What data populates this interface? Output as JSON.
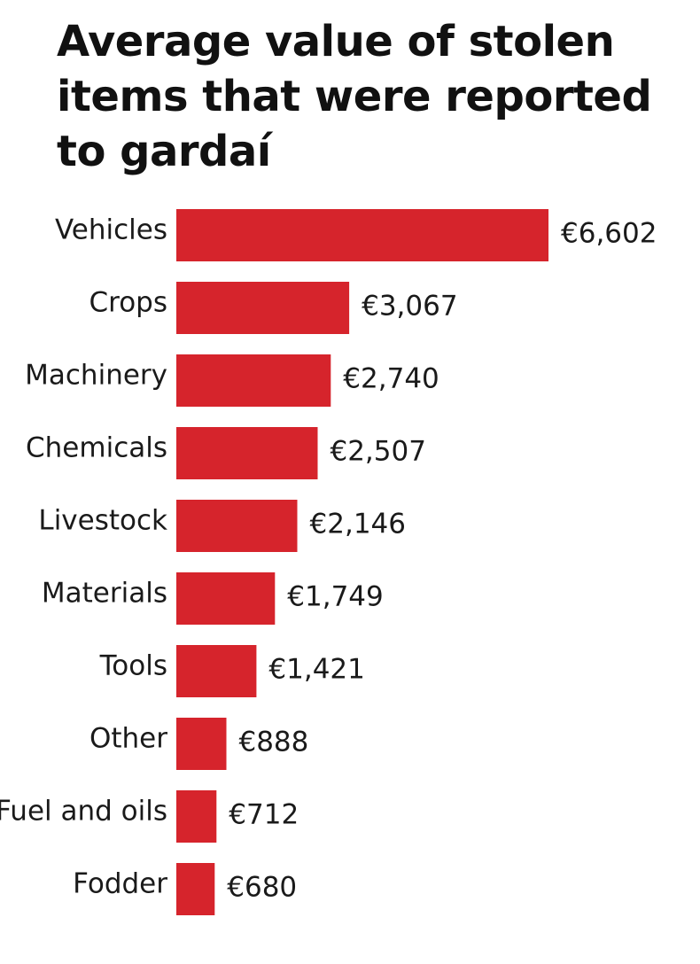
{
  "colors": {
    "bar": "#d6242c",
    "text": "#1a1a1a",
    "background": "#ffffff"
  },
  "chart_data": {
    "type": "bar",
    "orientation": "horizontal",
    "title": "Average value of stolen items that were reported to gardaí",
    "categories": [
      "Vehicles",
      "Crops",
      "Machinery",
      "Chemicals",
      "Livestock",
      "Materials",
      "Tools",
      "Other",
      "Fuel and oils",
      "Fodder"
    ],
    "values": [
      6602,
      3067,
      2740,
      2507,
      2146,
      1749,
      1421,
      888,
      712,
      680
    ],
    "value_labels": [
      "€6,602",
      "€3,067",
      "€2,740",
      "€2,507",
      "€2,146",
      "€1,749",
      "€1,421",
      "€888",
      "€712",
      "€680"
    ],
    "unit": "€",
    "grid": false,
    "legend": "none"
  }
}
